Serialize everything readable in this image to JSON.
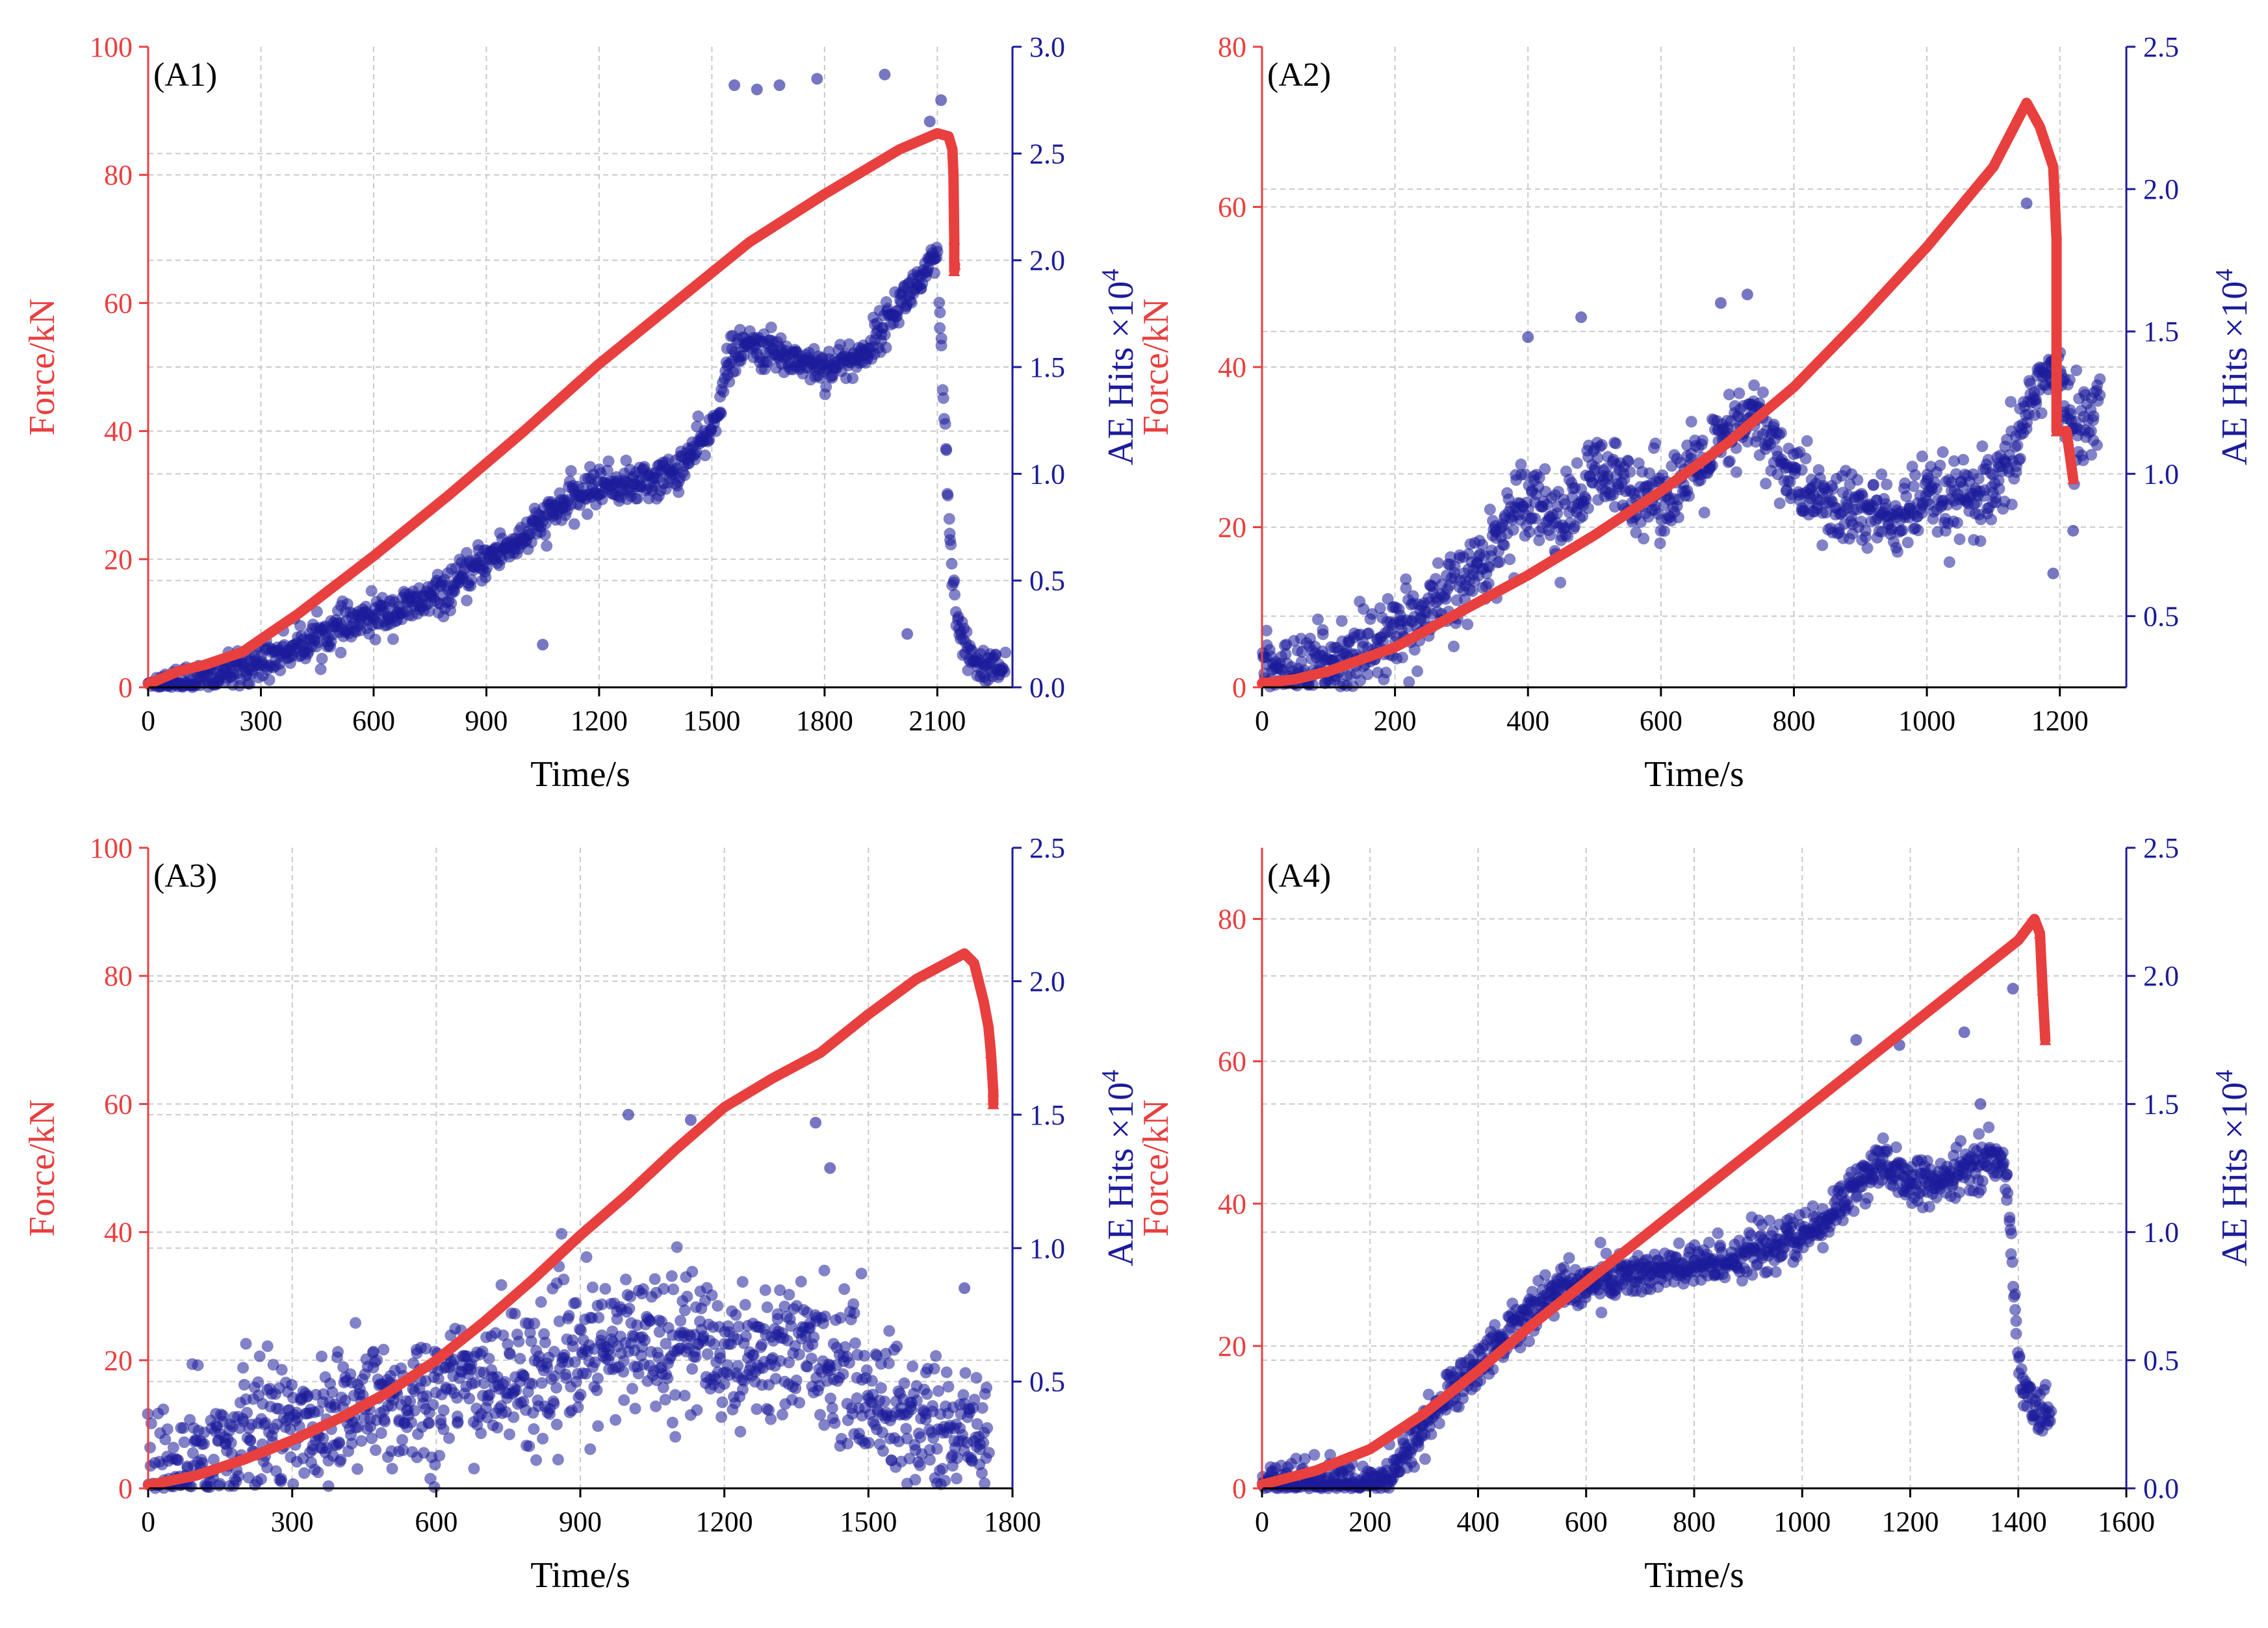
{
  "figure": {
    "colors": {
      "force": "#e83f3f",
      "ae": "#1b1b9a",
      "axis": "#000000",
      "grid": "#c9c9c9"
    }
  },
  "chart_data": [
    {
      "type": "line+scatter",
      "label": "(A1)",
      "xlabel": "Time/s",
      "ylabel_left": "Force/kN",
      "ylabel_right_main": "AE Hits ×10",
      "ylabel_right_exp": "4",
      "xlim": [
        0,
        2300
      ],
      "xticks": [
        0,
        300,
        600,
        900,
        1200,
        1500,
        1800,
        2100
      ],
      "ylim_left": [
        0,
        100
      ],
      "yticks_left": [
        0,
        20,
        40,
        60,
        80,
        100
      ],
      "ylim_right": [
        0,
        3.0
      ],
      "yticks_right": [
        "0.0",
        "0.5",
        "1.0",
        "1.5",
        "2.0",
        "2.5",
        "3.0"
      ],
      "grid": true,
      "series": [
        {
          "name": "Force",
          "axis": "left",
          "x": [
            0,
            40,
            80,
            150,
            250,
            400,
            600,
            800,
            1000,
            1200,
            1400,
            1600,
            1800,
            2000,
            2100,
            2130,
            2140,
            2143,
            2145,
            2145,
            2147
          ],
          "y": [
            0.5,
            1.5,
            2.5,
            3.5,
            5.5,
            11.5,
            20.5,
            30,
            40,
            50.5,
            60,
            69.5,
            77,
            84,
            86.5,
            86,
            84,
            80,
            70,
            65,
            66
          ]
        },
        {
          "name": "AE Hits",
          "axis": "right",
          "x": [
            0,
            100,
            200,
            300,
            400,
            500,
            600,
            700,
            800,
            900,
            1000,
            1100,
            1200,
            1300,
            1400,
            1500,
            1550,
            1600,
            1700,
            1800,
            1900,
            2000,
            2100,
            2130,
            2150,
            2180,
            2220,
            2280
          ],
          "y": [
            0.0,
            0.02,
            0.06,
            0.12,
            0.2,
            0.27,
            0.33,
            0.38,
            0.45,
            0.6,
            0.7,
            0.85,
            0.95,
            0.95,
            1.0,
            1.2,
            1.55,
            1.6,
            1.55,
            1.5,
            1.55,
            1.8,
            2.0,
            0.8,
            0.3,
            0.15,
            0.1,
            0.1
          ],
          "outliers_x": [
            1050,
            1560,
            1620,
            1680,
            1780,
            1960,
            2020,
            2110,
            2080
          ],
          "outliers_y": [
            0.2,
            2.82,
            2.8,
            2.82,
            2.85,
            2.87,
            0.25,
            2.75,
            2.65
          ]
        }
      ]
    },
    {
      "type": "line+scatter",
      "label": "(A2)",
      "xlabel": "Time/s",
      "ylabel_left": "Force/kN",
      "ylabel_right_main": "AE Hits ×10",
      "ylabel_right_exp": "4",
      "xlim": [
        0,
        1300
      ],
      "xticks": [
        0,
        200,
        400,
        600,
        800,
        1000,
        1200
      ],
      "ylim_left": [
        0,
        80
      ],
      "yticks_left": [
        0,
        20,
        40,
        60,
        80
      ],
      "ylim_right": [
        0.25,
        2.5
      ],
      "yticks_right": [
        "0.5",
        "1.0",
        "1.5",
        "2.0",
        "2.5"
      ],
      "grid": true,
      "series": [
        {
          "name": "Force",
          "axis": "left",
          "x": [
            0,
            50,
            100,
            200,
            300,
            400,
            500,
            600,
            700,
            800,
            900,
            1000,
            1100,
            1150,
            1170,
            1190,
            1195,
            1195,
            1210,
            1220
          ],
          "y": [
            0.5,
            1,
            2,
            5,
            9.5,
            14,
            19,
            24.5,
            30.5,
            37.5,
            46,
            55,
            65,
            73,
            70,
            65,
            56,
            32,
            32,
            26
          ]
        },
        {
          "name": "AE Hits",
          "axis": "right",
          "x": [
            0,
            60,
            100,
            150,
            200,
            250,
            300,
            350,
            400,
            450,
            500,
            550,
            600,
            650,
            700,
            740,
            800,
            850,
            900,
            950,
            1000,
            1050,
            1100,
            1130,
            1160,
            1180,
            1200,
            1220,
            1240,
            1260
          ],
          "y": [
            0.3,
            0.3,
            0.35,
            0.4,
            0.42,
            0.5,
            0.6,
            0.75,
            0.95,
            0.82,
            1.0,
            0.95,
            0.92,
            1.0,
            1.12,
            1.2,
            0.98,
            0.88,
            0.87,
            0.84,
            0.9,
            0.9,
            0.92,
            1.05,
            1.3,
            1.35,
            1.3,
            1.2,
            1.15,
            1.3
          ],
          "outliers_x": [
            400,
            480,
            690,
            730,
            1150,
            1190,
            1220
          ],
          "outliers_y": [
            1.48,
            1.55,
            1.6,
            1.63,
            1.95,
            0.65,
            0.8
          ]
        }
      ]
    },
    {
      "type": "line+scatter",
      "label": "(A3)",
      "xlabel": "Time/s",
      "ylabel_left": "Force/kN",
      "ylabel_right_main": "AE Hits ×10",
      "ylabel_right_exp": "4",
      "xlim": [
        0,
        1800
      ],
      "xticks": [
        0,
        300,
        600,
        900,
        1200,
        1500,
        1800
      ],
      "ylim_left": [
        0,
        100
      ],
      "yticks_left": [
        0,
        20,
        40,
        60,
        80,
        100
      ],
      "ylim_right": [
        0.1,
        2.5
      ],
      "yticks_right": [
        "0.5",
        "1.0",
        "1.5",
        "2.0",
        "2.5"
      ],
      "grid": true,
      "series": [
        {
          "name": "Force",
          "axis": "left",
          "x": [
            0,
            100,
            200,
            300,
            400,
            500,
            600,
            700,
            800,
            900,
            1000,
            1100,
            1200,
            1300,
            1400,
            1500,
            1600,
            1700,
            1720,
            1740,
            1750,
            1755,
            1760,
            1760
          ],
          "y": [
            0.5,
            2,
            4.5,
            7.5,
            11,
            15,
            20,
            26,
            32.5,
            39.5,
            46,
            53,
            59.5,
            64,
            68,
            74,
            79.5,
            83.5,
            82,
            76,
            72,
            68,
            62,
            60
          ]
        },
        {
          "name": "AE Hits",
          "axis": "right",
          "x": [
            0,
            100,
            200,
            300,
            400,
            500,
            600,
            700,
            800,
            900,
            1000,
            1100,
            1200,
            1300,
            1400,
            1500,
            1600,
            1700,
            1750
          ],
          "y": [
            0.15,
            0.2,
            0.3,
            0.35,
            0.38,
            0.42,
            0.45,
            0.5,
            0.52,
            0.58,
            0.65,
            0.68,
            0.6,
            0.62,
            0.62,
            0.45,
            0.35,
            0.3,
            0.35
          ],
          "outliers_x": [
            1000,
            1130,
            1390,
            1420,
            1700
          ],
          "outliers_y": [
            1.5,
            1.48,
            1.47,
            1.3,
            0.85
          ]
        }
      ]
    },
    {
      "type": "line+scatter",
      "label": "(A4)",
      "xlabel": "Time/s",
      "ylabel_left": "Force/kN",
      "ylabel_right_main": "AE Hits ×10",
      "ylabel_right_exp": "4",
      "xlim": [
        0,
        1600
      ],
      "xticks": [
        0,
        200,
        400,
        600,
        800,
        1000,
        1200,
        1400,
        1600
      ],
      "ylim_left": [
        0,
        90
      ],
      "yticks_left": [
        0,
        20,
        40,
        60,
        80
      ],
      "ylim_right": [
        0.0,
        2.5
      ],
      "yticks_right": [
        "0.0",
        "0.5",
        "1.0",
        "1.5",
        "2.0",
        "2.5"
      ],
      "grid": true,
      "series": [
        {
          "name": "Force",
          "axis": "left",
          "x": [
            0,
            100,
            200,
            300,
            400,
            500,
            600,
            700,
            800,
            900,
            1000,
            1100,
            1200,
            1300,
            1400,
            1430,
            1440,
            1445,
            1450
          ],
          "y": [
            0.5,
            2.5,
            5.5,
            10.5,
            16.5,
            23,
            29,
            35,
            41,
            47,
            53,
            59,
            65,
            71,
            77,
            80,
            78,
            70,
            63
          ]
        },
        {
          "name": "AE Hits",
          "axis": "right",
          "x": [
            0,
            100,
            200,
            250,
            300,
            350,
            400,
            450,
            500,
            550,
            600,
            700,
            800,
            900,
            1000,
            1050,
            1100,
            1150,
            1200,
            1250,
            1300,
            1350,
            1380,
            1400,
            1420,
            1440,
            1460
          ],
          "y": [
            0.02,
            0.02,
            0.02,
            0.08,
            0.25,
            0.38,
            0.48,
            0.6,
            0.7,
            0.78,
            0.8,
            0.84,
            0.86,
            0.92,
            0.98,
            1.05,
            1.2,
            1.25,
            1.2,
            1.18,
            1.25,
            1.3,
            1.2,
            0.5,
            0.35,
            0.3,
            0.3
          ],
          "outliers_x": [
            1100,
            1180,
            1300,
            1330,
            1390
          ],
          "outliers_y": [
            1.75,
            1.73,
            1.78,
            1.5,
            1.95
          ]
        }
      ]
    }
  ]
}
